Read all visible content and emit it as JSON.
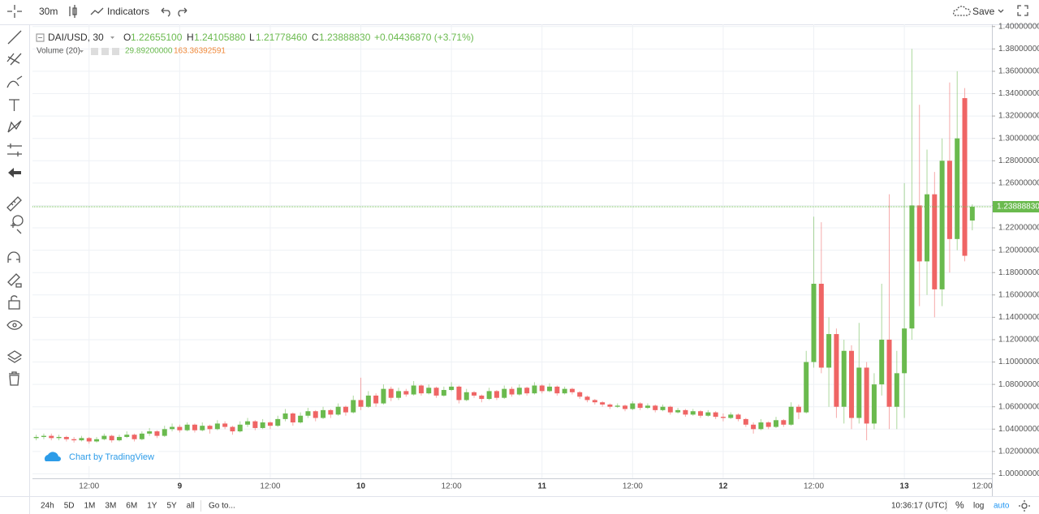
{
  "toolbar": {
    "interval": "30m",
    "indicators": "Indicators",
    "save": "Save"
  },
  "legend": {
    "symbol": "DAI/USD, 30",
    "o_label": "O",
    "open": "1.22655100",
    "h_label": "H",
    "high": "1.24105880",
    "l_label": "L",
    "low": "1.21778460",
    "c_label": "C",
    "close": "1.23888830",
    "change": "+0.04436870 (+3.71%)",
    "volume": "Volume (20)",
    "volume_value": "29.89200000",
    "volume_ma": "163.36392591"
  },
  "watermark": "Chart by TradingView",
  "bottom_bar": {
    "ranges": [
      "24h",
      "5D",
      "1M",
      "3M",
      "6M",
      "1Y",
      "5Y",
      "all"
    ],
    "goto": "Go to...",
    "time": "10:36:17 (UTC)",
    "percent": "%",
    "log": "log",
    "auto": "auto"
  },
  "chart_data": {
    "type": "candlestick",
    "up_color": "#6aba4e",
    "down_color": "#ef6565",
    "grid": true,
    "xlim": [
      -0.5,
      126.6
    ],
    "xticks": [
      {
        "value": 7,
        "label": "12:00"
      },
      {
        "value": 19,
        "label": "9"
      },
      {
        "value": 31,
        "label": "12:00"
      },
      {
        "value": 43,
        "label": "10"
      },
      {
        "value": 55,
        "label": "12:00"
      },
      {
        "value": 67,
        "label": "11"
      },
      {
        "value": 79,
        "label": "12:00"
      },
      {
        "value": 91,
        "label": "12"
      },
      {
        "value": 103,
        "label": "12:00"
      },
      {
        "value": 115,
        "label": "13"
      },
      {
        "value": 127,
        "label": "12:00"
      }
    ],
    "ylim": [
      0.996,
      1.402
    ],
    "yticks": [
      {
        "value": 1.0,
        "label": "1.00000000"
      },
      {
        "value": 1.02,
        "label": "1.02000000"
      },
      {
        "value": 1.04,
        "label": "1.04000000"
      },
      {
        "value": 1.06,
        "label": "1.06000000"
      },
      {
        "value": 1.08,
        "label": "1.08000000"
      },
      {
        "value": 1.1,
        "label": "1.10000000"
      },
      {
        "value": 1.12,
        "label": "1.12000000"
      },
      {
        "value": 1.14,
        "label": "1.14000000"
      },
      {
        "value": 1.16,
        "label": "1.16000000"
      },
      {
        "value": 1.18,
        "label": "1.18000000"
      },
      {
        "value": 1.2,
        "label": "1.20000000"
      },
      {
        "value": 1.22,
        "label": "1.22000000"
      },
      {
        "value": 1.24,
        "label": "1.24000000"
      },
      {
        "value": 1.26,
        "label": "1.26000000"
      },
      {
        "value": 1.28,
        "label": "1.28000000"
      },
      {
        "value": 1.3,
        "label": "1.30000000"
      },
      {
        "value": 1.32,
        "label": "1.32000000"
      },
      {
        "value": 1.34,
        "label": "1.34000000"
      },
      {
        "value": 1.36,
        "label": "1.36000000"
      },
      {
        "value": 1.38,
        "label": "1.38000000"
      },
      {
        "value": 1.4,
        "label": "1.40000000"
      }
    ],
    "last_price": {
      "value": 1.2388883,
      "label": "1.23888830"
    },
    "candles": [
      [
        1.032,
        1.035,
        1.03,
        1.033
      ],
      [
        1.033,
        1.036,
        1.031,
        1.034
      ],
      [
        1.034,
        1.036,
        1.03,
        1.032
      ],
      [
        1.032,
        1.035,
        1.03,
        1.033
      ],
      [
        1.033,
        1.034,
        1.029,
        1.031
      ],
      [
        1.031,
        1.033,
        1.028,
        1.03
      ],
      [
        1.03,
        1.034,
        1.029,
        1.032
      ],
      [
        1.032,
        1.033,
        1.027,
        1.029
      ],
      [
        1.029,
        1.033,
        1.028,
        1.031
      ],
      [
        1.031,
        1.036,
        1.03,
        1.034
      ],
      [
        1.034,
        1.035,
        1.028,
        1.03
      ],
      [
        1.03,
        1.035,
        1.029,
        1.033
      ],
      [
        1.033,
        1.038,
        1.032,
        1.035
      ],
      [
        1.035,
        1.036,
        1.029,
        1.031
      ],
      [
        1.031,
        1.038,
        1.03,
        1.036
      ],
      [
        1.036,
        1.041,
        1.034,
        1.038
      ],
      [
        1.038,
        1.039,
        1.032,
        1.034
      ],
      [
        1.034,
        1.043,
        1.033,
        1.04
      ],
      [
        1.04,
        1.045,
        1.038,
        1.042
      ],
      [
        1.042,
        1.044,
        1.037,
        1.039
      ],
      [
        1.039,
        1.046,
        1.038,
        1.044
      ],
      [
        1.044,
        1.045,
        1.037,
        1.039
      ],
      [
        1.039,
        1.046,
        1.038,
        1.043
      ],
      [
        1.043,
        1.044,
        1.036,
        1.04
      ],
      [
        1.04,
        1.048,
        1.039,
        1.045
      ],
      [
        1.045,
        1.047,
        1.04,
        1.042
      ],
      [
        1.042,
        1.043,
        1.035,
        1.038
      ],
      [
        1.038,
        1.047,
        1.037,
        1.044
      ],
      [
        1.044,
        1.05,
        1.042,
        1.047
      ],
      [
        1.047,
        1.048,
        1.039,
        1.041
      ],
      [
        1.041,
        1.049,
        1.04,
        1.046
      ],
      [
        1.046,
        1.047,
        1.04,
        1.043
      ],
      [
        1.043,
        1.052,
        1.042,
        1.049
      ],
      [
        1.049,
        1.058,
        1.047,
        1.054
      ],
      [
        1.054,
        1.055,
        1.043,
        1.046
      ],
      [
        1.046,
        1.055,
        1.045,
        1.052
      ],
      [
        1.052,
        1.059,
        1.05,
        1.056
      ],
      [
        1.056,
        1.057,
        1.047,
        1.05
      ],
      [
        1.05,
        1.06,
        1.049,
        1.057
      ],
      [
        1.057,
        1.058,
        1.05,
        1.053
      ],
      [
        1.053,
        1.063,
        1.052,
        1.06
      ],
      [
        1.06,
        1.061,
        1.052,
        1.055
      ],
      [
        1.055,
        1.07,
        1.054,
        1.066
      ],
      [
        1.066,
        1.086,
        1.057,
        1.06
      ],
      [
        1.06,
        1.074,
        1.059,
        1.07
      ],
      [
        1.07,
        1.072,
        1.06,
        1.063
      ],
      [
        1.063,
        1.08,
        1.062,
        1.076
      ],
      [
        1.076,
        1.078,
        1.065,
        1.068
      ],
      [
        1.068,
        1.077,
        1.066,
        1.074
      ],
      [
        1.074,
        1.076,
        1.069,
        1.071
      ],
      [
        1.071,
        1.083,
        1.07,
        1.079
      ],
      [
        1.079,
        1.08,
        1.07,
        1.072
      ],
      [
        1.072,
        1.08,
        1.071,
        1.077
      ],
      [
        1.077,
        1.078,
        1.068,
        1.07
      ],
      [
        1.07,
        1.078,
        1.069,
        1.075
      ],
      [
        1.075,
        1.082,
        1.074,
        1.078
      ],
      [
        1.078,
        1.079,
        1.063,
        1.066
      ],
      [
        1.066,
        1.076,
        1.065,
        1.073
      ],
      [
        1.073,
        1.074,
        1.068,
        1.07
      ],
      [
        1.07,
        1.071,
        1.064,
        1.067
      ],
      [
        1.067,
        1.077,
        1.066,
        1.074
      ],
      [
        1.074,
        1.075,
        1.066,
        1.068
      ],
      [
        1.068,
        1.079,
        1.067,
        1.076
      ],
      [
        1.076,
        1.078,
        1.069,
        1.071
      ],
      [
        1.071,
        1.08,
        1.07,
        1.077
      ],
      [
        1.077,
        1.078,
        1.07,
        1.072
      ],
      [
        1.072,
        1.082,
        1.071,
        1.079
      ],
      [
        1.079,
        1.08,
        1.072,
        1.074
      ],
      [
        1.074,
        1.081,
        1.073,
        1.078
      ],
      [
        1.078,
        1.079,
        1.07,
        1.072
      ],
      [
        1.072,
        1.078,
        1.071,
        1.076
      ],
      [
        1.076,
        1.077,
        1.071,
        1.073
      ],
      [
        1.073,
        1.074,
        1.067,
        1.069
      ],
      [
        1.069,
        1.07,
        1.064,
        1.066
      ],
      [
        1.066,
        1.067,
        1.062,
        1.064
      ],
      [
        1.064,
        1.065,
        1.06,
        1.062
      ],
      [
        1.062,
        1.063,
        1.058,
        1.06
      ],
      [
        1.06,
        1.063,
        1.059,
        1.061
      ],
      [
        1.061,
        1.062,
        1.056,
        1.058
      ],
      [
        1.058,
        1.065,
        1.057,
        1.063
      ],
      [
        1.063,
        1.064,
        1.057,
        1.059
      ],
      [
        1.059,
        1.063,
        1.058,
        1.061
      ],
      [
        1.061,
        1.062,
        1.055,
        1.057
      ],
      [
        1.057,
        1.062,
        1.056,
        1.06
      ],
      [
        1.06,
        1.061,
        1.053,
        1.055
      ],
      [
        1.055,
        1.059,
        1.054,
        1.057
      ],
      [
        1.057,
        1.058,
        1.051,
        1.053
      ],
      [
        1.053,
        1.058,
        1.052,
        1.056
      ],
      [
        1.056,
        1.057,
        1.05,
        1.052
      ],
      [
        1.052,
        1.057,
        1.051,
        1.055
      ],
      [
        1.055,
        1.056,
        1.049,
        1.051
      ],
      [
        1.051,
        1.054,
        1.047,
        1.05
      ],
      [
        1.05,
        1.055,
        1.049,
        1.053
      ],
      [
        1.053,
        1.054,
        1.047,
        1.049
      ],
      [
        1.049,
        1.05,
        1.042,
        1.044
      ],
      [
        1.044,
        1.046,
        1.036,
        1.04
      ],
      [
        1.04,
        1.049,
        1.039,
        1.046
      ],
      [
        1.046,
        1.047,
        1.04,
        1.042
      ],
      [
        1.042,
        1.051,
        1.041,
        1.048
      ],
      [
        1.048,
        1.049,
        1.042,
        1.044
      ],
      [
        1.044,
        1.064,
        1.043,
        1.06
      ],
      [
        1.06,
        1.062,
        1.049,
        1.055
      ],
      [
        1.055,
        1.11,
        1.054,
        1.1
      ],
      [
        1.1,
        1.23,
        1.095,
        1.17
      ],
      [
        1.17,
        1.225,
        1.09,
        1.095
      ],
      [
        1.095,
        1.14,
        1.06,
        1.125
      ],
      [
        1.125,
        1.13,
        1.05,
        1.06
      ],
      [
        1.06,
        1.12,
        1.045,
        1.11
      ],
      [
        1.11,
        1.115,
        1.04,
        1.05
      ],
      [
        1.05,
        1.135,
        1.045,
        1.095
      ],
      [
        1.095,
        1.1,
        1.03,
        1.045
      ],
      [
        1.045,
        1.09,
        1.04,
        1.08
      ],
      [
        1.08,
        1.17,
        1.07,
        1.12
      ],
      [
        1.12,
        1.25,
        1.04,
        1.06
      ],
      [
        1.06,
        1.11,
        1.04,
        1.09
      ],
      [
        1.09,
        1.26,
        1.05,
        1.13
      ],
      [
        1.13,
        1.38,
        1.12,
        1.24
      ],
      [
        1.24,
        1.33,
        1.15,
        1.19
      ],
      [
        1.19,
        1.29,
        1.16,
        1.25
      ],
      [
        1.25,
        1.27,
        1.14,
        1.165
      ],
      [
        1.165,
        1.3,
        1.15,
        1.28
      ],
      [
        1.28,
        1.35,
        1.18,
        1.21
      ],
      [
        1.21,
        1.36,
        1.2,
        1.3
      ],
      [
        1.336,
        1.345,
        1.19,
        1.195
      ],
      [
        1.226551,
        1.2410588,
        1.2177846,
        1.2388883
      ]
    ]
  }
}
